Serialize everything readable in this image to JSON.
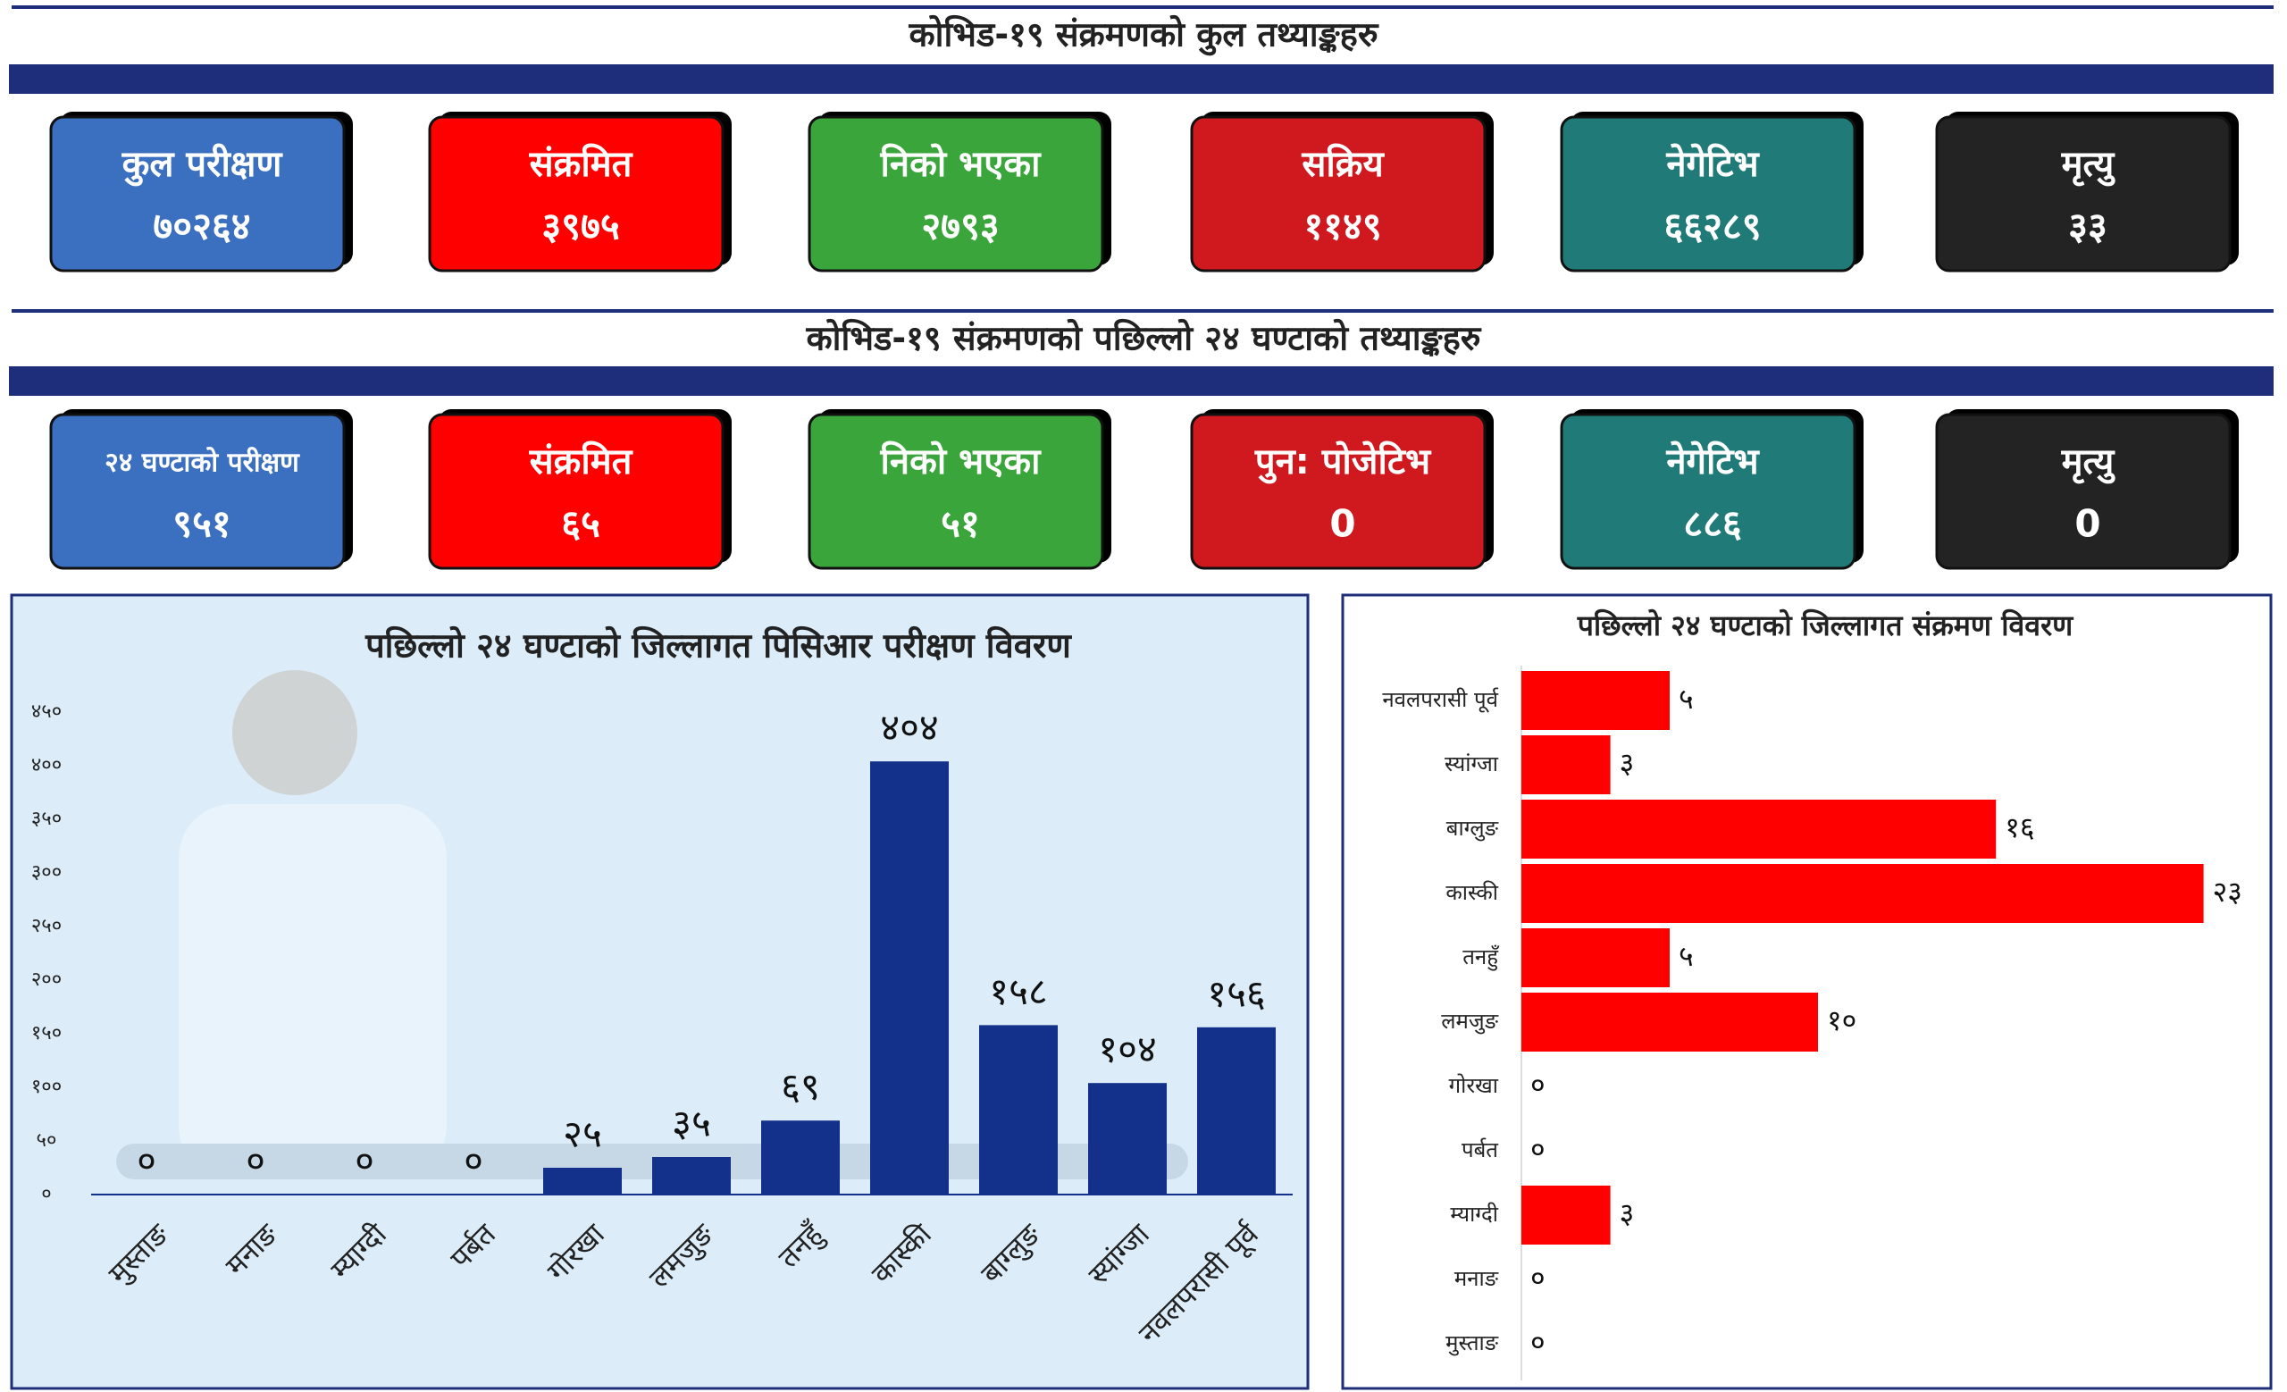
{
  "summary_total": {
    "title": "कोभिड-१९ संक्रमणको कुल तथ्याङ्कहरु",
    "cards": [
      {
        "label": "कुल परीक्षण",
        "value": "७०२६४",
        "color": "#3b6fbf"
      },
      {
        "label": "संक्रमित",
        "value": "३९७५",
        "color": "#fe0000"
      },
      {
        "label": "निको भएका",
        "value": "२७९३",
        "color": "#3aa53a"
      },
      {
        "label": "सक्रिय",
        "value": "११४९",
        "color": "#d0181f"
      },
      {
        "label": "नेगेटिभ",
        "value": "६६२८९",
        "color": "#1f7a78"
      },
      {
        "label": "मृत्यु",
        "value": "३३",
        "color": "#232323"
      }
    ]
  },
  "summary_24h": {
    "title": "कोभिड-१९ संक्रमणको पछिल्लो २४ घण्टाको तथ्याङ्कहरु",
    "cards": [
      {
        "label": "२४ घण्टाको परीक्षण",
        "value": "९५१",
        "color": "#3b6fbf"
      },
      {
        "label": "संक्रमित",
        "value": "६५",
        "color": "#fe0000"
      },
      {
        "label": "निको भएका",
        "value": "५१",
        "color": "#3aa53a"
      },
      {
        "label": "पुन: पोजेटिभ",
        "value": "0",
        "color": "#d0181f"
      },
      {
        "label": "नेगेटिभ",
        "value": "८८६",
        "color": "#1f7a78"
      },
      {
        "label": "मृत्यु",
        "value": "0",
        "color": "#232323"
      }
    ]
  },
  "chart_data": [
    {
      "type": "bar",
      "title": "पछिल्लो २४ घण्टाको जिल्लागत पिसिआर परीक्षण विवरण",
      "categories": [
        "मुस्ताङ",
        "मनाङ",
        "म्याग्दी",
        "पर्बत",
        "गोरखा",
        "लमजुङ",
        "तनहुँ",
        "कास्की",
        "बाग्लुङ",
        "स्यांग्जा",
        "नवलपरासी पूर्व"
      ],
      "values": [
        0,
        0,
        0,
        0,
        25,
        35,
        69,
        404,
        158,
        104,
        156
      ],
      "value_labels": [
        "०",
        "०",
        "०",
        "०",
        "२५",
        "३५",
        "६९",
        "४०४",
        "१५८",
        "१०४",
        "१५६"
      ],
      "color": "#13318a",
      "ylim": [
        0,
        450
      ],
      "yticks": [
        {
          "value": 0,
          "label": "०"
        },
        {
          "value": 50,
          "label": "५०"
        },
        {
          "value": 100,
          "label": "१००"
        },
        {
          "value": 150,
          "label": "१५०"
        },
        {
          "value": 200,
          "label": "२००"
        },
        {
          "value": 250,
          "label": "२५०"
        },
        {
          "value": 300,
          "label": "३००"
        },
        {
          "value": 350,
          "label": "३५०"
        },
        {
          "value": 400,
          "label": "४००"
        },
        {
          "value": 450,
          "label": "४५०"
        }
      ]
    },
    {
      "type": "barh",
      "title": "पछिल्लो २४ घण्टाको जिल्लागत संक्रमण विवरण",
      "categories": [
        "नवलपरासी पूर्व",
        "स्यांग्जा",
        "बाग्लुङ",
        "कास्की",
        "तनहुँ",
        "लमजुङ",
        "गोरखा",
        "पर्बत",
        "म्याग्दी",
        "मनाङ",
        "मुस्ताङ"
      ],
      "values": [
        5,
        3,
        16,
        23,
        5,
        10,
        0,
        0,
        3,
        0,
        0
      ],
      "value_labels": [
        "५",
        "३",
        "१६",
        "२३",
        "५",
        "१०",
        "०",
        "०",
        "३",
        "०",
        "०"
      ],
      "color": "#fe0000",
      "xlim": [
        0,
        25
      ]
    }
  ]
}
